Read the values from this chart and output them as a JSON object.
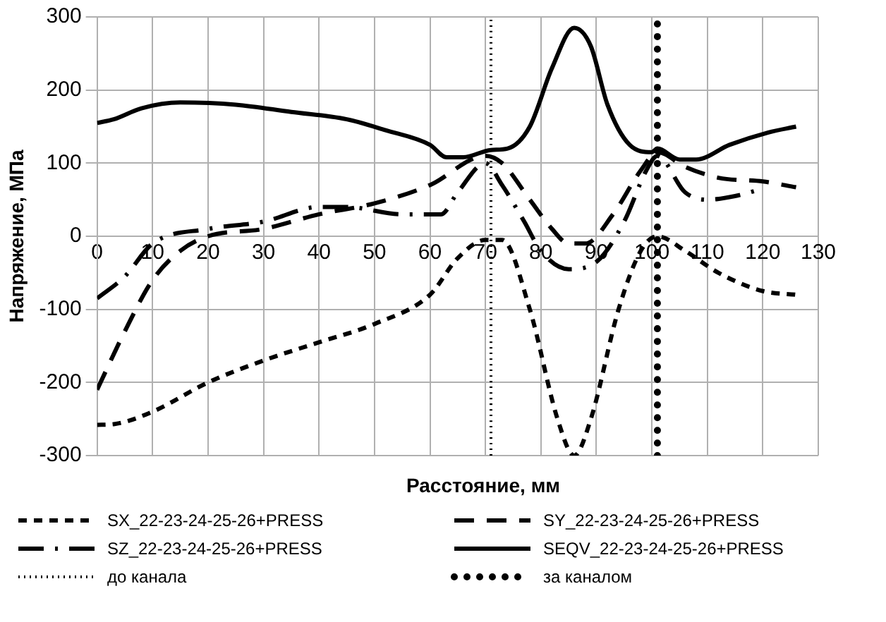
{
  "chart_data": {
    "type": "line",
    "xlabel": "Расстояние, мм",
    "ylabel": "Напряжение, МПа",
    "xlim": [
      0,
      130
    ],
    "xticks": [
      0,
      10,
      20,
      30,
      40,
      50,
      60,
      70,
      80,
      90,
      100,
      110,
      120,
      130
    ],
    "ylim": [
      -300,
      300
    ],
    "yticks": [
      -300,
      -200,
      -100,
      0,
      100,
      200,
      300
    ],
    "grid": true,
    "legend": "bottom",
    "marker": "none",
    "series": [
      {
        "name": "SX_22-23-24-25-26+PRESS",
        "color": "#000000",
        "line_style": "dashed",
        "x": [
          0,
          3,
          10,
          20,
          30,
          40,
          50,
          60,
          65,
          70,
          73,
          78,
          83,
          86,
          89,
          94,
          98,
          101,
          106,
          112,
          120,
          126
        ],
        "values": [
          -258,
          -257,
          -240,
          -200,
          -170,
          -145,
          -120,
          -80,
          -30,
          -5,
          -5,
          -100,
          -250,
          -300,
          -250,
          -100,
          -20,
          0,
          -20,
          -50,
          -75,
          -80
        ]
      },
      {
        "name": "SY_22-23-24-25-26+PRESS",
        "color": "#000000",
        "line_style": "dashed",
        "x": [
          0,
          5,
          10,
          15,
          20,
          30,
          40,
          50,
          60,
          70,
          73,
          78,
          82,
          85,
          88,
          93,
          98,
          101,
          106,
          112,
          120,
          126
        ],
        "values": [
          -210,
          -130,
          -60,
          -20,
          0,
          10,
          30,
          45,
          70,
          110,
          100,
          50,
          10,
          -10,
          -10,
          30,
          90,
          115,
          95,
          80,
          75,
          67
        ]
      },
      {
        "name": "SZ_22-23-24-25-26+PRESS",
        "color": "#000000",
        "line_style": "dashed",
        "x": [
          0,
          5,
          10,
          20,
          30,
          40,
          45,
          55,
          62,
          65,
          70,
          73,
          77,
          80,
          85,
          90,
          95,
          99,
          101,
          106,
          110,
          115,
          120
        ],
        "values": [
          -85,
          -55,
          -10,
          10,
          20,
          40,
          40,
          30,
          30,
          60,
          100,
          70,
          20,
          -20,
          -45,
          -35,
          20,
          90,
          110,
          60,
          50,
          55,
          65
        ]
      },
      {
        "name": "SEQV_22-23-24-25-26+PRESS",
        "color": "#000000",
        "line_style": "solid",
        "x": [
          0,
          3,
          8,
          15,
          25,
          35,
          45,
          52,
          60,
          63,
          66,
          71,
          74,
          78,
          82,
          86,
          89,
          92,
          96,
          100,
          101,
          105,
          108,
          114,
          121,
          126
        ],
        "values": [
          155,
          160,
          175,
          183,
          180,
          170,
          160,
          145,
          125,
          108,
          108,
          118,
          120,
          150,
          230,
          285,
          260,
          180,
          125,
          115,
          120,
          105,
          105,
          125,
          142,
          150
        ]
      },
      {
        "name": "до канала",
        "color": "#000000",
        "line_style": "dotted",
        "x": [
          71,
          71
        ],
        "values": [
          -300,
          300
        ]
      },
      {
        "name": "за каналом",
        "color": "#000000",
        "line_style": "dotted",
        "x": [
          101,
          101
        ],
        "values": [
          -300,
          300
        ]
      }
    ]
  }
}
